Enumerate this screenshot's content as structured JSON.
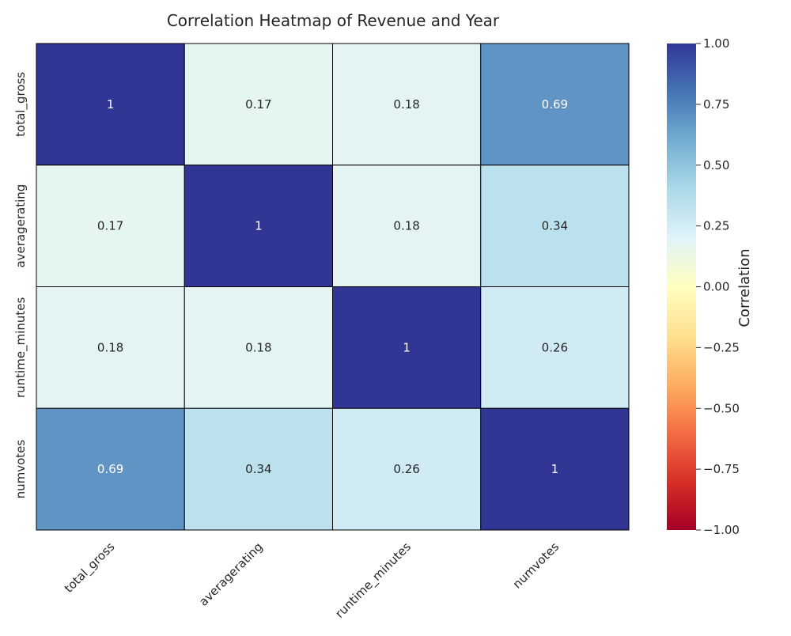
{
  "chart_data": {
    "type": "heatmap",
    "title": "Correlation Heatmap of Revenue and Year",
    "x_categories": [
      "total_gross",
      "averagerating",
      "runtime_minutes",
      "numvotes"
    ],
    "y_categories": [
      "total_gross",
      "averagerating",
      "runtime_minutes",
      "numvotes"
    ],
    "values": [
      [
        1,
        0.17,
        0.18,
        0.69
      ],
      [
        0.17,
        1,
        0.18,
        0.34
      ],
      [
        0.18,
        0.18,
        1,
        0.26
      ],
      [
        0.69,
        0.34,
        0.26,
        1
      ]
    ],
    "annotations": [
      [
        "1",
        "0.17",
        "0.18",
        "0.69"
      ],
      [
        "0.17",
        "1",
        "0.18",
        "0.34"
      ],
      [
        "0.18",
        "0.18",
        "1",
        "0.26"
      ],
      [
        "0.69",
        "0.34",
        "0.26",
        "1"
      ]
    ],
    "colorbar": {
      "label": "Correlation",
      "vmin": -1.0,
      "vmax": 1.0,
      "ticks": [
        1.0,
        0.75,
        0.5,
        0.25,
        0.0,
        -0.25,
        -0.5,
        -0.75,
        -1.0
      ],
      "tick_labels": [
        "1.00",
        "0.75",
        "0.50",
        "0.25",
        "0.00",
        "−0.25",
        "−0.50",
        "−0.75",
        "−1.00"
      ],
      "colormap": "RdYlBu",
      "colormap_stops": [
        "#a50026",
        "#d73027",
        "#f46d43",
        "#fdae61",
        "#fee090",
        "#ffffbf",
        "#e0f3f8",
        "#abd9e9",
        "#74add1",
        "#4575b4",
        "#313695"
      ]
    },
    "cell_border_color": "#000000",
    "x_tick_rotation": 45,
    "grid": false
  }
}
